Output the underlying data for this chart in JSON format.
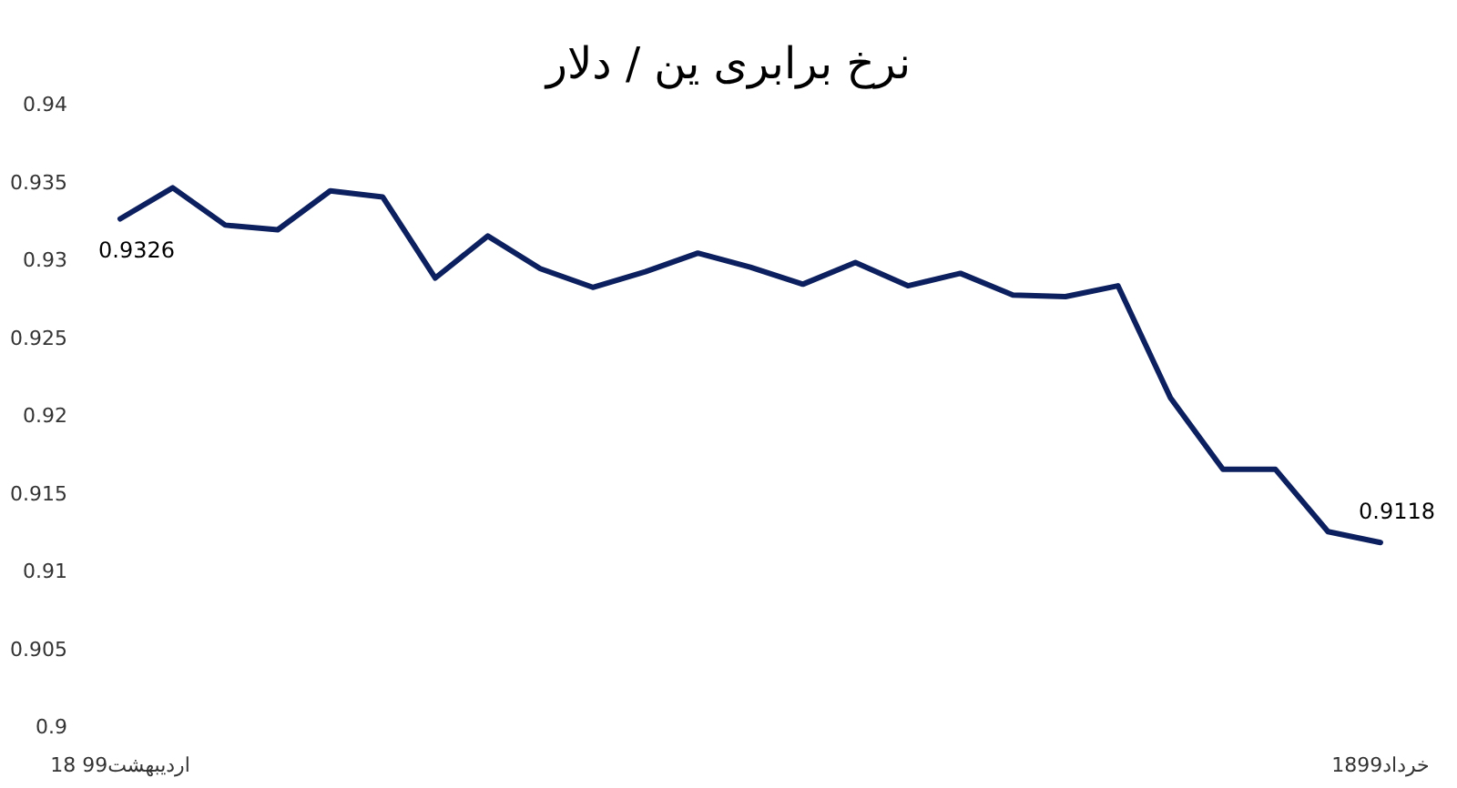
{
  "chart_data": {
    "type": "line",
    "title": "نرخ برابری ین / دلار",
    "categories": [
      "18 اردیبهشت99",
      null,
      null,
      null,
      null,
      null,
      null,
      null,
      null,
      null,
      null,
      null,
      null,
      null,
      null,
      null,
      null,
      null,
      null,
      null,
      null,
      null,
      null,
      null,
      "18خرداد99"
    ],
    "values": [
      0.9326,
      0.9346,
      0.9322,
      0.9319,
      0.9344,
      0.934,
      0.9288,
      0.9315,
      0.9294,
      0.9282,
      0.9292,
      0.9304,
      0.9295,
      0.9284,
      0.9298,
      0.9283,
      0.9291,
      0.9277,
      0.9276,
      0.9283,
      0.9211,
      0.9165,
      0.9165,
      0.9125,
      0.9118
    ],
    "value_labels": [
      "0.9326",
      null,
      null,
      null,
      null,
      null,
      null,
      null,
      null,
      null,
      null,
      null,
      null,
      null,
      null,
      null,
      null,
      null,
      null,
      null,
      null,
      null,
      null,
      null,
      "0.9118"
    ],
    "color": "#0c1f5e",
    "ylim": [
      0.9,
      0.94
    ],
    "yticks": [
      0.9,
      0.905,
      0.91,
      0.915,
      0.92,
      0.925,
      0.93,
      0.935,
      0.94
    ]
  }
}
